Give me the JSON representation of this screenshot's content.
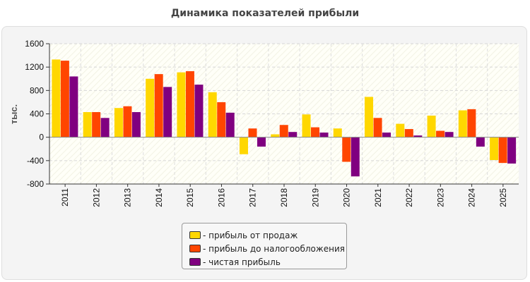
{
  "chart_data": {
    "type": "bar",
    "title": "Динамика показателей прибыли",
    "ylabel": "тыс.",
    "xlabel": "",
    "ylim": [
      -800,
      1600
    ],
    "yticks": [
      1600,
      1200,
      800,
      400,
      0,
      -400,
      -800
    ],
    "grid": true,
    "legend_position": "bottom",
    "legend_prefix": "- ",
    "categories": [
      "2011",
      "2012",
      "2013",
      "2014",
      "2015",
      "2016",
      "2017",
      "2018",
      "2019",
      "2020",
      "2021",
      "2022",
      "2023",
      "2024",
      "2025"
    ],
    "series": [
      {
        "name": "прибыль от продаж",
        "color": "#ffd700",
        "values": [
          1330,
          430,
          500,
          1000,
          1110,
          770,
          -290,
          50,
          390,
          150,
          690,
          230,
          370,
          460,
          -390
        ]
      },
      {
        "name": "прибыль до налогообложения",
        "color": "#ff4500",
        "values": [
          1310,
          430,
          530,
          1080,
          1130,
          600,
          150,
          210,
          170,
          -420,
          330,
          140,
          110,
          480,
          -440
        ]
      },
      {
        "name": "чистая прибыль",
        "color": "#800080",
        "values": [
          1040,
          330,
          430,
          860,
          900,
          420,
          -160,
          90,
          80,
          -670,
          80,
          30,
          90,
          -160,
          -450
        ]
      }
    ]
  }
}
